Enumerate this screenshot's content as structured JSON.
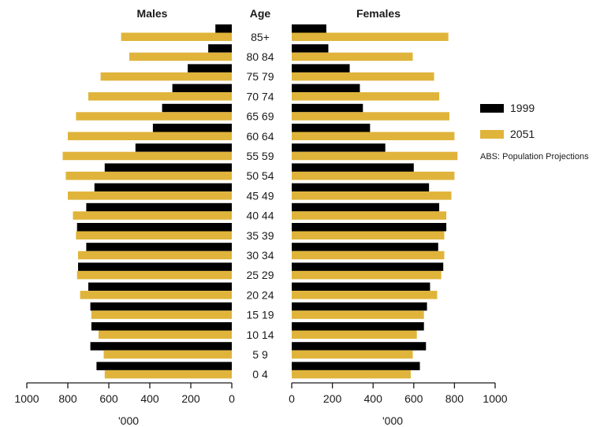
{
  "titles": {
    "left": "Males",
    "center": "Age",
    "right": "Females"
  },
  "legend": [
    {
      "label": "1999",
      "color": "#000000"
    },
    {
      "label": "2051",
      "color": "#E0B43A"
    }
  ],
  "source_note": "ABS: Population Projections",
  "unit_label_left": "'000",
  "unit_label_right": "'000",
  "chart_data": {
    "type": "bar",
    "orientation": "horizontal",
    "subtype": "population-pyramid",
    "categories": [
      "85+",
      "80 84",
      "75 79",
      "70 74",
      "65 69",
      "60 64",
      "55 59",
      "50 54",
      "45 49",
      "40 44",
      "35 39",
      "30 34",
      "25 29",
      "20 24",
      "15 19",
      "10 14",
      "5 9",
      "0 4"
    ],
    "series": [
      {
        "name": "1999",
        "group": "Males",
        "color": "#000000",
        "values": [
          80,
          115,
          215,
          290,
          340,
          385,
          470,
          620,
          670,
          710,
          755,
          710,
          750,
          700,
          690,
          685,
          690,
          660
        ]
      },
      {
        "name": "2051",
        "group": "Males",
        "color": "#E0B43A",
        "values": [
          540,
          500,
          640,
          700,
          760,
          800,
          825,
          810,
          800,
          775,
          760,
          750,
          755,
          740,
          685,
          650,
          625,
          620
        ]
      },
      {
        "name": "1999",
        "group": "Females",
        "color": "#000000",
        "values": [
          170,
          180,
          285,
          335,
          350,
          385,
          460,
          600,
          675,
          725,
          760,
          720,
          745,
          680,
          665,
          650,
          660,
          630
        ]
      },
      {
        "name": "2051",
        "group": "Females",
        "color": "#E0B43A",
        "values": [
          770,
          595,
          700,
          725,
          775,
          800,
          815,
          800,
          785,
          760,
          750,
          750,
          735,
          715,
          650,
          615,
          595,
          585
        ]
      }
    ],
    "x_ticks": [
      "1000",
      "800",
      "600",
      "400",
      "200",
      "0"
    ],
    "xlim": [
      0,
      1000
    ],
    "grid": false,
    "legend_position": "right"
  }
}
